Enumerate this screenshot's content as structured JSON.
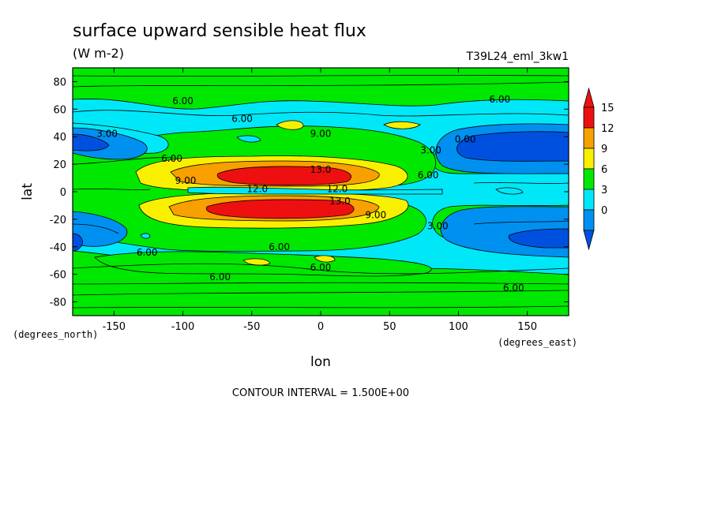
{
  "chart_data": {
    "type": "heatmap",
    "title": "surface upward sensible heat flux",
    "units_label": "(W m-2)",
    "run_label": "T39L24_eml_3kw1",
    "xlabel": "lon",
    "ylabel": "lat",
    "x_unit_label": "(degrees_east)",
    "y_unit_label": "(degrees_north)",
    "footer": "CONTOUR INTERVAL = 1.500E+00",
    "xlim": [
      -180,
      180
    ],
    "ylim": [
      -90,
      90
    ],
    "x_ticks": [
      "-150",
      "-100",
      "-50",
      "0",
      "50",
      "100",
      "150"
    ],
    "x_tick_values": [
      -150,
      -100,
      -50,
      0,
      50,
      100,
      150
    ],
    "y_ticks": [
      "80",
      "60",
      "40",
      "20",
      "0",
      "-20",
      "-40",
      "-60",
      "-80"
    ],
    "y_tick_values": [
      80,
      60,
      40,
      20,
      0,
      -20,
      -40,
      -60,
      -80
    ],
    "colorbar": {
      "labels": [
        "15",
        "12",
        "9",
        "6",
        "3",
        "0"
      ],
      "levels": [
        {
          "from": 15,
          "color": "#ee1010"
        },
        {
          "from": 12,
          "color": "#f8a000"
        },
        {
          "from": 9,
          "color": "#f8f000"
        },
        {
          "from": 6,
          "color": "#00e800"
        },
        {
          "from": 3,
          "color": "#00e8f8"
        },
        {
          "from": 0,
          "color": "#0090f0"
        }
      ],
      "upper_overflow_color": "#ee1010",
      "lower_overflow_color": "#0050e0",
      "deep_blue": "#0050e0"
    },
    "contour_labels": [
      {
        "text": "6.00",
        "lon": -100,
        "lat": 66
      },
      {
        "text": "6.00",
        "lon": 130,
        "lat": 67
      },
      {
        "text": "6.00",
        "lon": -57,
        "lat": 53
      },
      {
        "text": "9.00",
        "lon": 0,
        "lat": 42
      },
      {
        "text": "3.00",
        "lon": -155,
        "lat": 42
      },
      {
        "text": "0.00",
        "lon": 105,
        "lat": 38
      },
      {
        "text": "3.00",
        "lon": 80,
        "lat": 30
      },
      {
        "text": "6.00",
        "lon": -108,
        "lat": 24
      },
      {
        "text": "13.0",
        "lon": 0,
        "lat": 16
      },
      {
        "text": "9.00",
        "lon": -98,
        "lat": 8
      },
      {
        "text": "6.00",
        "lon": 78,
        "lat": 12
      },
      {
        "text": "12.0",
        "lon": -46,
        "lat": 2
      },
      {
        "text": "12.0",
        "lon": 12,
        "lat": 2
      },
      {
        "text": "13.0",
        "lon": 14,
        "lat": -7
      },
      {
        "text": "9.00",
        "lon": 40,
        "lat": -17
      },
      {
        "text": "3.00",
        "lon": 85,
        "lat": -25
      },
      {
        "text": "6.00",
        "lon": -126,
        "lat": -44
      },
      {
        "text": "6.00",
        "lon": -30,
        "lat": -40
      },
      {
        "text": "6.00",
        "lon": 0,
        "lat": -55
      },
      {
        "text": "6.00",
        "lon": -73,
        "lat": -62
      },
      {
        "text": "6.00",
        "lon": 140,
        "lat": -70
      }
    ]
  }
}
